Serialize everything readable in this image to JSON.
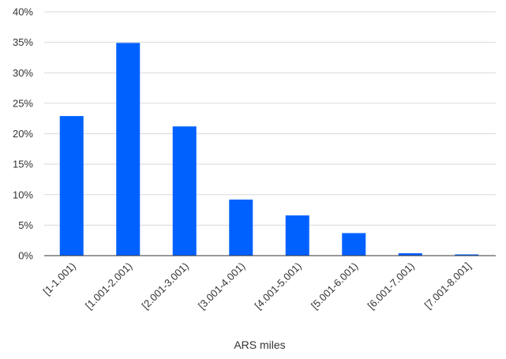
{
  "chart_data": {
    "type": "bar",
    "categories": [
      "[1-1.001)",
      "[1.001-2.001)",
      "[2.001-3.001)",
      "[3.001-4.001)",
      "[4.001-5.001)",
      "[5.001-6.001)",
      "[6.001-7.001)",
      "[7.001-8.001]"
    ],
    "values": [
      0.229,
      0.349,
      0.212,
      0.092,
      0.066,
      0.037,
      0.004,
      0.002
    ],
    "xlabel": "ARS miles",
    "ylabel": "",
    "ylim": [
      0,
      0.4
    ],
    "yticks": [
      0,
      0.05,
      0.1,
      0.15,
      0.2,
      0.25,
      0.3,
      0.35,
      0.4
    ],
    "ytick_labels": [
      "0%",
      "5%",
      "10%",
      "15%",
      "20%",
      "25%",
      "30%",
      "35%",
      "40%"
    ],
    "grid": true,
    "legend": "none",
    "colors": {
      "bar": "#0061FF",
      "grid": "#D9D9D9",
      "axis": "#333333"
    }
  }
}
